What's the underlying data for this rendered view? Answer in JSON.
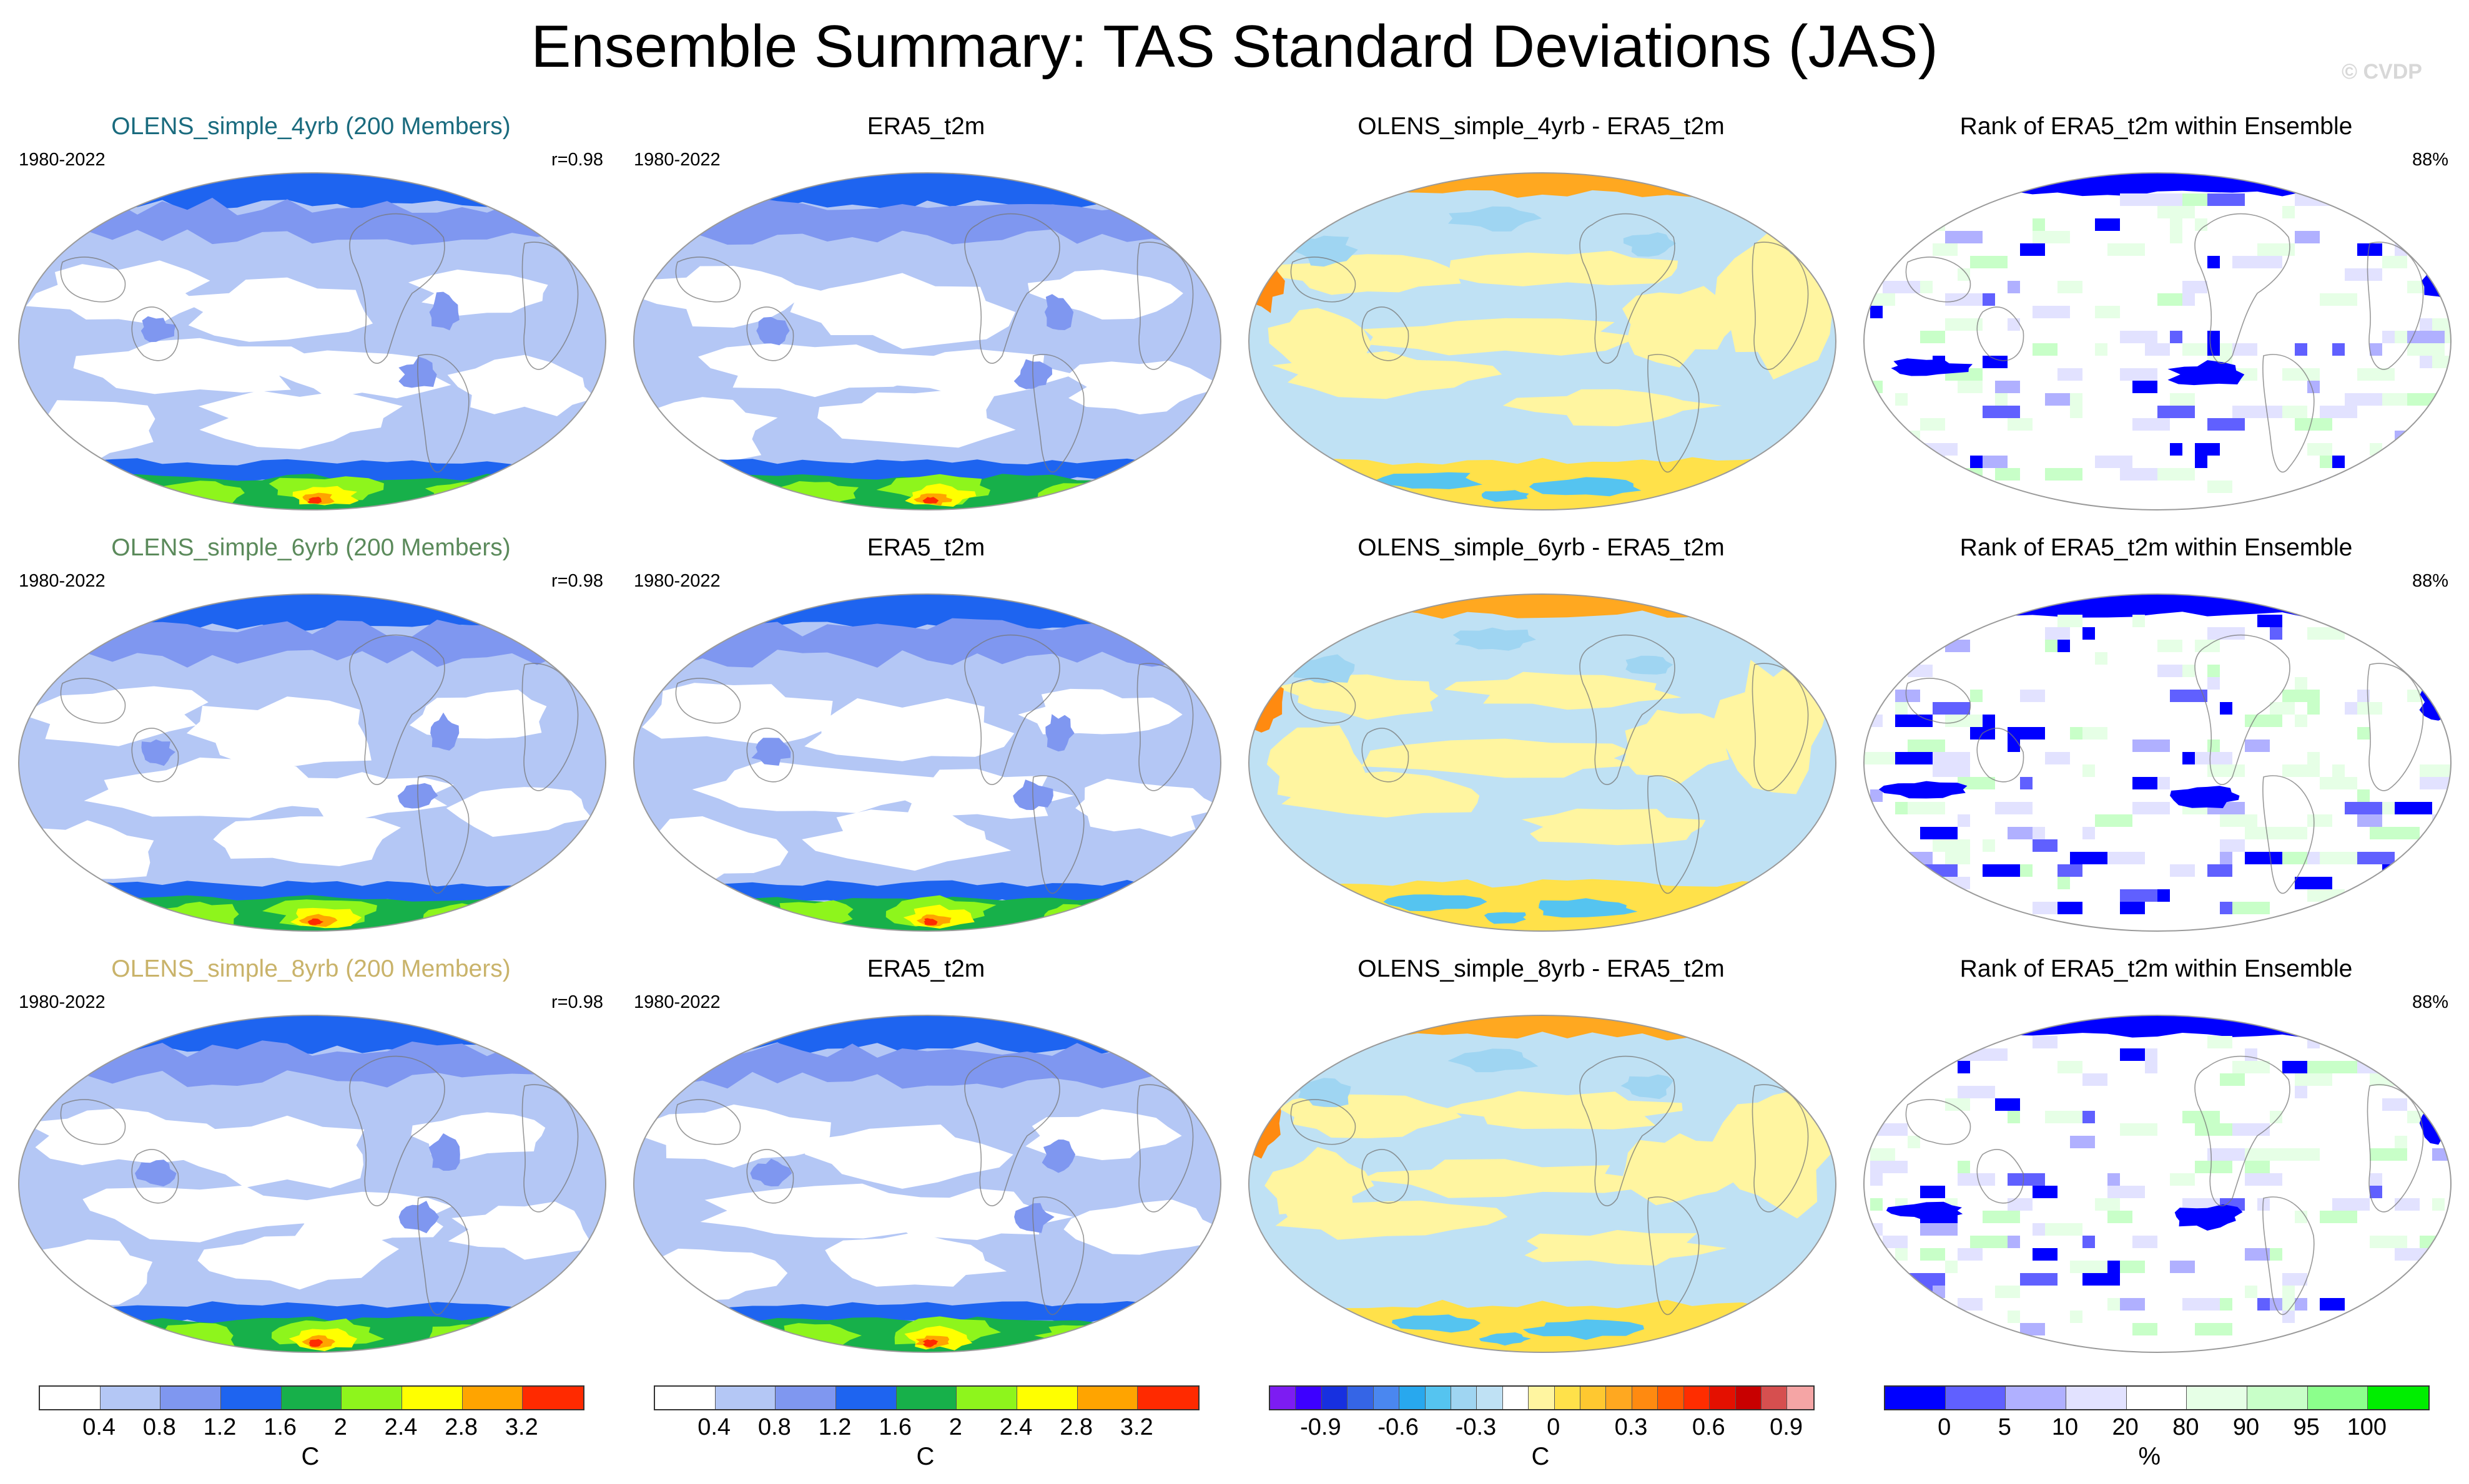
{
  "title": "Ensemble Summary: TAS Standard Deviations (JAS)",
  "watermark": "© CVDP",
  "colors": {
    "sd": [
      "#ffffff",
      "#b4c7f5",
      "#7f97f0",
      "#1e64f0",
      "#17b04a",
      "#8ef51c",
      "#ffff00",
      "#ffa400",
      "#ff2a00"
    ],
    "diff": [
      "#7d1cf2",
      "#3d00ff",
      "#1730e0",
      "#3565e6",
      "#4a87f0",
      "#28a8ee",
      "#55c4f0",
      "#9fd5f2",
      "#bfe1f4",
      "#ffffff",
      "#fff5a0",
      "#ffe14a",
      "#ffc830",
      "#ffa820",
      "#ff8a10",
      "#ff5a00",
      "#ff2d00",
      "#e41000",
      "#c80000",
      "#d64f4f",
      "#f5a5a5"
    ],
    "rank": [
      "#0000ff",
      "#6060ff",
      "#b0b0ff",
      "#e2e2ff",
      "#ffffff",
      "#e6ffe6",
      "#c8ffc8",
      "#8cff8c",
      "#00ee00"
    ]
  },
  "rows": [
    {
      "model_title": "OLENS_simple_4yrb (200 Members)",
      "model_color": "#1a6b7e",
      "period": "1980-2022",
      "r": "r=0.98",
      "obs_title": "ERA5_t2m",
      "obs_period": "1980-2022",
      "diff_title": "OLENS_simple_4yrb - ERA5_t2m",
      "rank_title": "Rank of ERA5_t2m within Ensemble",
      "rank_pct": "88%"
    },
    {
      "model_title": "OLENS_simple_6yrb (200 Members)",
      "model_color": "#5b8a5b",
      "period": "1980-2022",
      "r": "r=0.98",
      "obs_title": "ERA5_t2m",
      "obs_period": "1980-2022",
      "diff_title": "OLENS_simple_6yrb - ERA5_t2m",
      "rank_title": "Rank of ERA5_t2m within Ensemble",
      "rank_pct": "88%"
    },
    {
      "model_title": "OLENS_simple_8yrb (200 Members)",
      "model_color": "#c9b36a",
      "period": "1980-2022",
      "r": "r=0.98",
      "obs_title": "ERA5_t2m",
      "obs_period": "1980-2022",
      "diff_title": "OLENS_simple_8yrb - ERA5_t2m",
      "rank_title": "Rank of ERA5_t2m within Ensemble",
      "rank_pct": "88%"
    }
  ],
  "colorbars": {
    "model": {
      "labels": [
        "0.4",
        "0.8",
        "1.2",
        "1.6",
        "2",
        "2.4",
        "2.8",
        "3.2"
      ],
      "unit": "C"
    },
    "obs": {
      "labels": [
        "0.4",
        "0.8",
        "1.2",
        "1.6",
        "2",
        "2.4",
        "2.8",
        "3.2"
      ],
      "unit": "C"
    },
    "diff": {
      "labels": [
        "-0.9",
        "-0.6",
        "-0.3",
        "0",
        "0.3",
        "0.6",
        "0.9"
      ],
      "unit": "C"
    },
    "rank": {
      "labels": [
        "0",
        "5",
        "10",
        "20",
        "80",
        "90",
        "95",
        "100"
      ],
      "unit": "%"
    }
  }
}
